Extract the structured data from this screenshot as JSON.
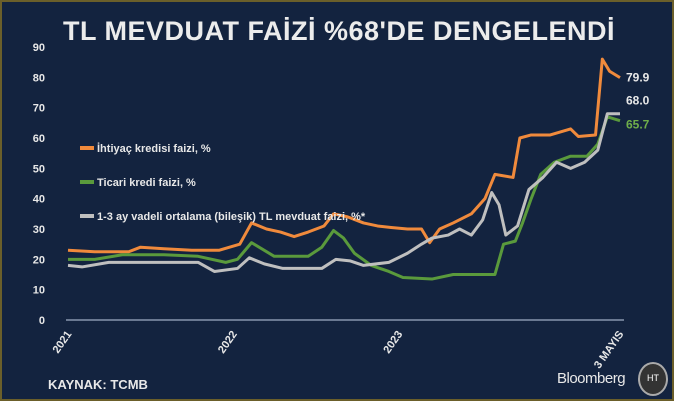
{
  "chart_data": {
    "type": "line",
    "title": "TL MEVDUAT FAİZİ %68'DE DENGELENDİ",
    "ylim": [
      0,
      90
    ],
    "yticks": [
      "0",
      "10",
      "20",
      "30",
      "40",
      "50",
      "60",
      "70",
      "80",
      "90"
    ],
    "xlim": [
      "2021-01-01",
      "2024-05-03"
    ],
    "xticks": [
      {
        "label": "2021",
        "date": "2021-01-01"
      },
      {
        "label": "2022",
        "date": "2022-01-01"
      },
      {
        "label": "2023",
        "date": "2023-01-01"
      },
      {
        "label": "3 MAYIS",
        "date": "2024-05-03"
      }
    ],
    "grid": false,
    "legend_position": "left-middle",
    "series": [
      {
        "name": "İhtiyaç kredisi faizi, %",
        "color": "#f08a3c",
        "end_label": "79.9",
        "points": [
          [
            "2021-01-01",
            23
          ],
          [
            "2021-03-01",
            22.5
          ],
          [
            "2021-05-15",
            22.5
          ],
          [
            "2021-06-10",
            24
          ],
          [
            "2021-08-01",
            23.5
          ],
          [
            "2021-10-01",
            23
          ],
          [
            "2021-12-01",
            23
          ],
          [
            "2022-01-15",
            25
          ],
          [
            "2022-02-10",
            32
          ],
          [
            "2022-03-15",
            30
          ],
          [
            "2022-04-15",
            29
          ],
          [
            "2022-05-15",
            27.5
          ],
          [
            "2022-06-15",
            29
          ],
          [
            "2022-07-20",
            31
          ],
          [
            "2022-08-10",
            35
          ],
          [
            "2022-09-10",
            34
          ],
          [
            "2022-10-15",
            32
          ],
          [
            "2022-11-15",
            31
          ],
          [
            "2022-12-15",
            30.5
          ],
          [
            "2023-01-20",
            30
          ],
          [
            "2023-02-20",
            30
          ],
          [
            "2023-03-10",
            25.5
          ],
          [
            "2023-04-01",
            30
          ],
          [
            "2023-05-01",
            32
          ],
          [
            "2023-06-10",
            35
          ],
          [
            "2023-07-10",
            40
          ],
          [
            "2023-08-01",
            48
          ],
          [
            "2023-09-10",
            47
          ],
          [
            "2023-09-25",
            60
          ],
          [
            "2023-10-20",
            61
          ],
          [
            "2023-12-01",
            61
          ],
          [
            "2024-01-15",
            63
          ],
          [
            "2024-02-01",
            60.5
          ],
          [
            "2024-03-10",
            61
          ],
          [
            "2024-03-25",
            86
          ],
          [
            "2024-04-10",
            82
          ],
          [
            "2024-05-03",
            79.9
          ]
        ]
      },
      {
        "name": "Ticari kredi faizi, %",
        "color": "#5a9a3c",
        "end_label": "65.7",
        "points": [
          [
            "2021-01-01",
            20
          ],
          [
            "2021-03-01",
            20
          ],
          [
            "2021-05-01",
            21.5
          ],
          [
            "2021-08-01",
            21.5
          ],
          [
            "2021-10-15",
            21
          ],
          [
            "2021-12-15",
            19
          ],
          [
            "2022-01-10",
            20
          ],
          [
            "2022-02-10",
            25.5
          ],
          [
            "2022-04-01",
            21
          ],
          [
            "2022-06-15",
            21
          ],
          [
            "2022-07-15",
            24
          ],
          [
            "2022-08-10",
            29.5
          ],
          [
            "2022-09-01",
            27
          ],
          [
            "2022-09-25",
            22
          ],
          [
            "2022-11-01",
            18
          ],
          [
            "2022-12-10",
            16
          ],
          [
            "2023-01-10",
            14
          ],
          [
            "2023-03-15",
            13.5
          ],
          [
            "2023-05-01",
            15
          ],
          [
            "2023-08-01",
            15
          ],
          [
            "2023-08-20",
            25
          ],
          [
            "2023-09-15",
            26
          ],
          [
            "2023-10-01",
            32
          ],
          [
            "2023-10-20",
            40
          ],
          [
            "2023-11-10",
            48
          ],
          [
            "2023-12-10",
            52
          ],
          [
            "2024-01-15",
            54
          ],
          [
            "2024-02-20",
            54
          ],
          [
            "2024-03-15",
            58
          ],
          [
            "2024-04-05",
            67
          ],
          [
            "2024-05-03",
            65.7
          ]
        ]
      },
      {
        "name": "1-3 ay vadeli ortalama (bileşik) TL mevduat faizi, %*",
        "color": "#bfbfbf",
        "end_label": "68.0",
        "points": [
          [
            "2021-01-01",
            18
          ],
          [
            "2021-02-01",
            17.5
          ],
          [
            "2021-04-01",
            19
          ],
          [
            "2021-10-15",
            19
          ],
          [
            "2021-11-20",
            16
          ],
          [
            "2022-01-10",
            17
          ],
          [
            "2022-02-05",
            20.5
          ],
          [
            "2022-03-10",
            18.5
          ],
          [
            "2022-04-20",
            17
          ],
          [
            "2022-07-15",
            17
          ],
          [
            "2022-08-15",
            20
          ],
          [
            "2022-09-15",
            19.5
          ],
          [
            "2022-10-15",
            18
          ],
          [
            "2022-12-10",
            19
          ],
          [
            "2023-01-20",
            22
          ],
          [
            "2023-02-20",
            25
          ],
          [
            "2023-03-15",
            27
          ],
          [
            "2023-04-20",
            28
          ],
          [
            "2023-05-15",
            30
          ],
          [
            "2023-06-10",
            28
          ],
          [
            "2023-07-05",
            33
          ],
          [
            "2023-07-25",
            42
          ],
          [
            "2023-08-10",
            38
          ],
          [
            "2023-08-25",
            28
          ],
          [
            "2023-09-20",
            31
          ],
          [
            "2023-10-15",
            43
          ],
          [
            "2023-11-15",
            47
          ],
          [
            "2023-12-15",
            52
          ],
          [
            "2024-01-15",
            50
          ],
          [
            "2024-02-15",
            52
          ],
          [
            "2024-03-15",
            56
          ],
          [
            "2024-04-05",
            68
          ],
          [
            "2024-05-03",
            68.0
          ]
        ]
      }
    ]
  },
  "footer": {
    "source": "KAYNAK: TCMB",
    "brand": "Bloomberg",
    "logo_text": "HT"
  }
}
